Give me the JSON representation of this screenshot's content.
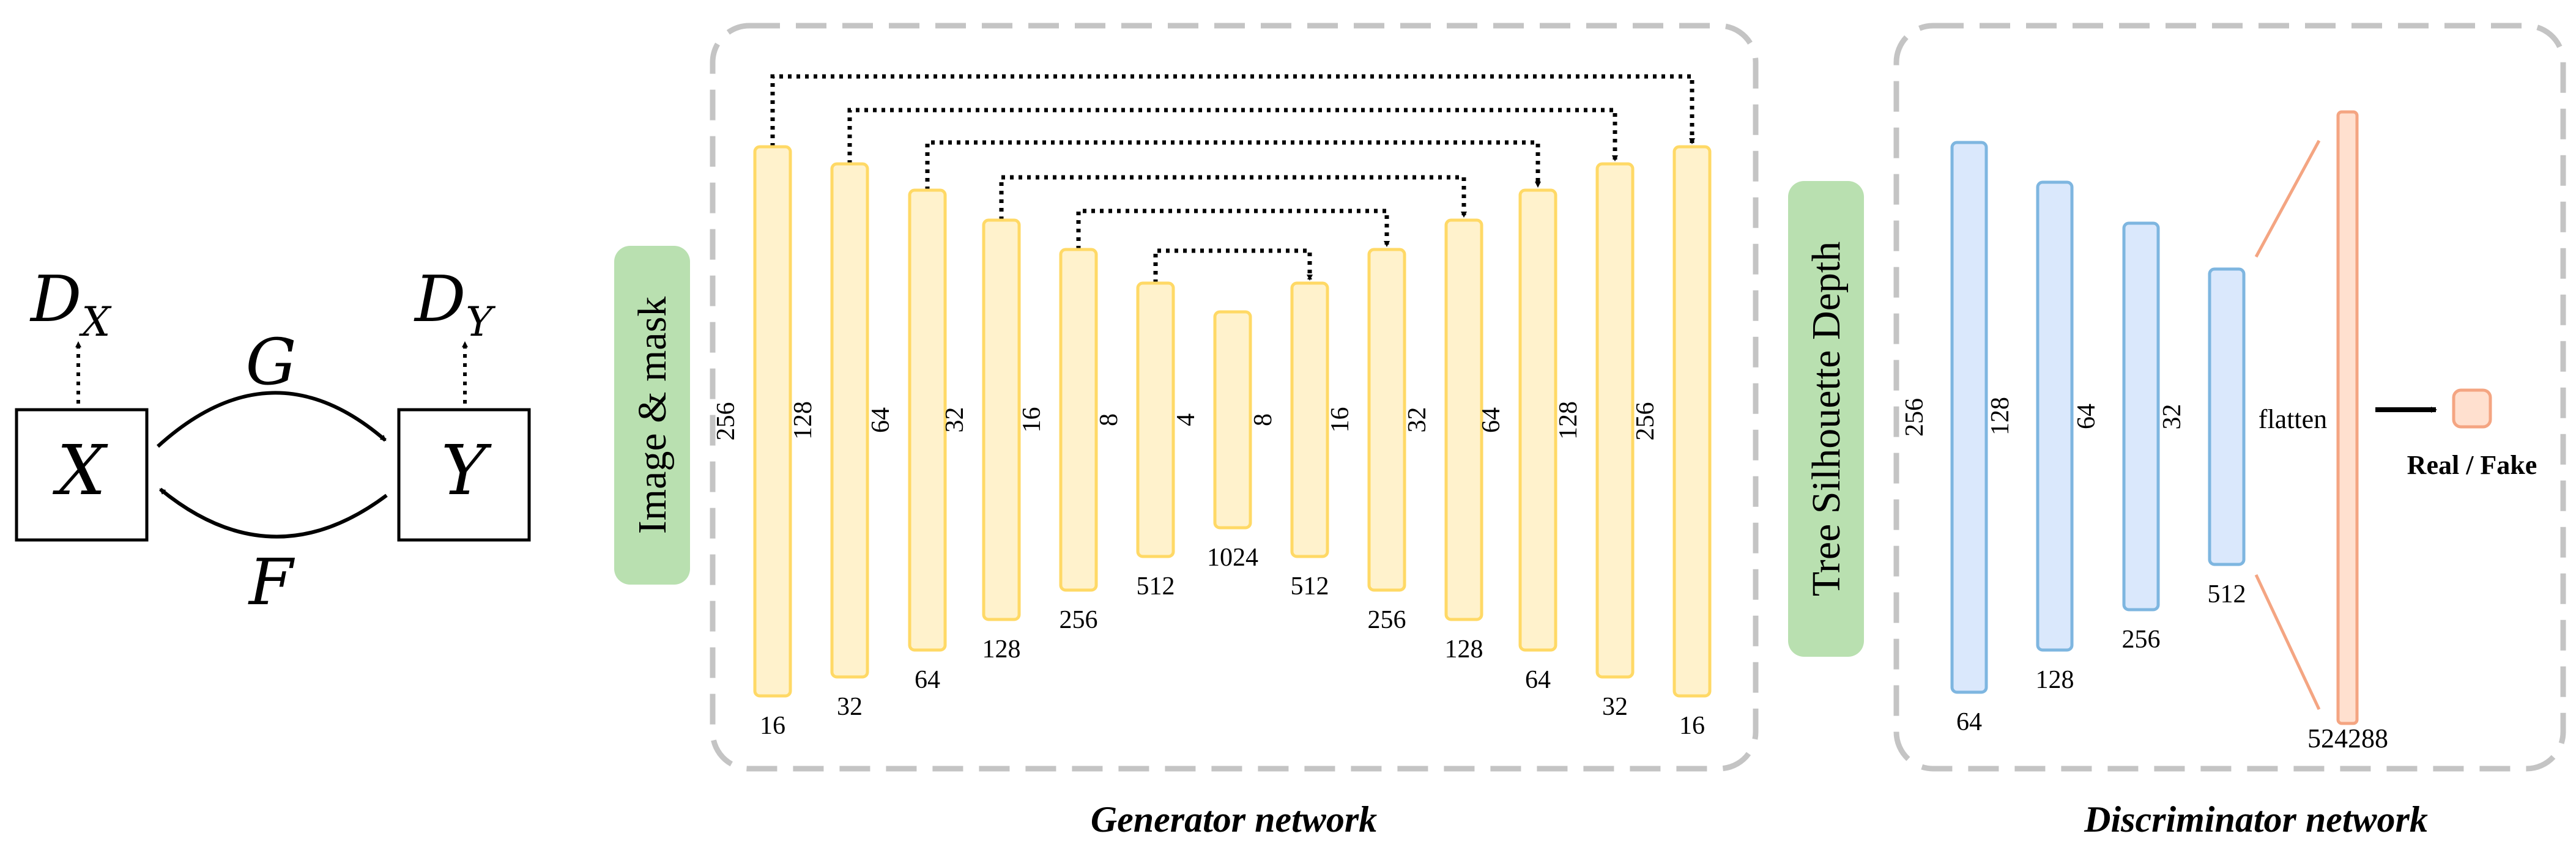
{
  "cycle": {
    "nodes": [
      "X",
      "Y"
    ],
    "discriminators": [
      "D",
      "X",
      "D",
      "Y"
    ],
    "mappings": [
      "G",
      "F"
    ]
  },
  "generator": {
    "input_label": "Image & mask",
    "output_label": "Tree Silhouette Depth",
    "caption": "Generator network",
    "layers": [
      {
        "channels": "256",
        "size": "16"
      },
      {
        "channels": "128",
        "size": "32"
      },
      {
        "channels": "64",
        "size": "64"
      },
      {
        "channels": "32",
        "size": "128"
      },
      {
        "channels": "16",
        "size": "256"
      },
      {
        "channels": "8",
        "size": "512"
      },
      {
        "channels": "4",
        "size": "1024"
      },
      {
        "channels": "8",
        "size": "512"
      },
      {
        "channels": "16",
        "size": "256"
      },
      {
        "channels": "32",
        "size": "128"
      },
      {
        "channels": "64",
        "size": "64"
      },
      {
        "channels": "128",
        "size": "32"
      },
      {
        "channels": "256",
        "size": "16"
      }
    ]
  },
  "discriminator": {
    "caption": "Discriminator network",
    "layers": [
      {
        "channels": "256",
        "size": "64"
      },
      {
        "channels": "128",
        "size": "128"
      },
      {
        "channels": "64",
        "size": "256"
      },
      {
        "channels": "32",
        "size": "512"
      }
    ],
    "flatten_label": "flatten",
    "flatten_size": "524288",
    "output_label": "Real / Fake"
  },
  "colors": {
    "generator_fill": "#fff2cc",
    "generator_stroke": "#ffd966",
    "discriminator_fill": "#dae8fc",
    "discriminator_stroke": "#7eb6e0",
    "flatten_fill": "#ffe0cf",
    "flatten_stroke": "#f4a582",
    "label_box_fill": "#b9e0b0",
    "frame_stroke": "#c4c4c4"
  }
}
